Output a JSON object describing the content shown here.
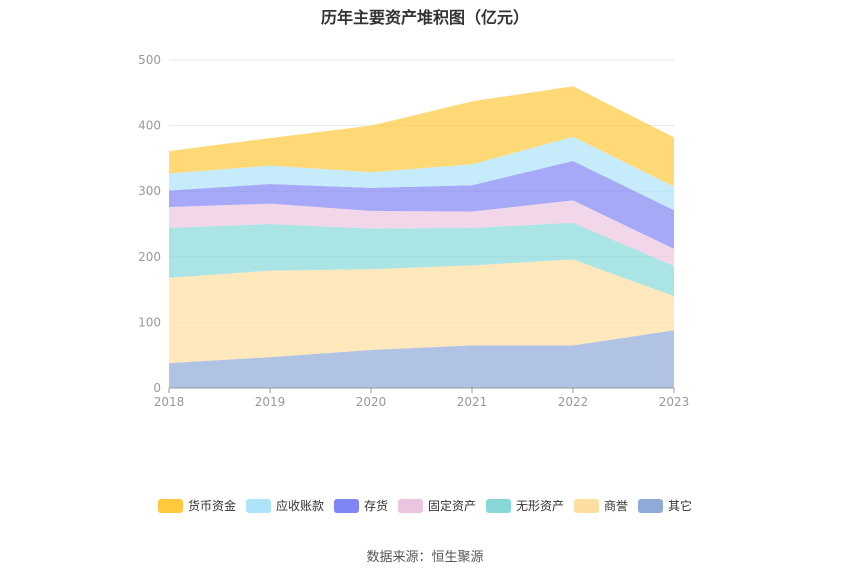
{
  "chart_data": {
    "type": "area",
    "stacked": true,
    "title": "历年主要资产堆积图（亿元）",
    "x": [
      "2018",
      "2019",
      "2020",
      "2021",
      "2022",
      "2023"
    ],
    "ylim": [
      0,
      500
    ],
    "yticks": [
      "0",
      "100",
      "200",
      "300",
      "400",
      "500"
    ],
    "grid": true,
    "legend_position": "bottom",
    "series": [
      {
        "name": "其它",
        "color": "#8eaad9",
        "values": [
          38,
          47,
          58,
          65,
          65,
          88
        ]
      },
      {
        "name": "商誉",
        "color": "#fddea0",
        "values": [
          130,
          132,
          123,
          122,
          131,
          52
        ]
      },
      {
        "name": "无形资产",
        "color": "#88d8d8",
        "values": [
          76,
          71,
          62,
          57,
          56,
          46
        ]
      },
      {
        "name": "固定资产",
        "color": "#ecc4e0",
        "values": [
          32,
          31,
          27,
          25,
          34,
          26
        ]
      },
      {
        "name": "存货",
        "color": "#7f85f4",
        "values": [
          25,
          30,
          35,
          40,
          60,
          59
        ]
      },
      {
        "name": "应收账款",
        "color": "#aee4fa",
        "values": [
          26,
          28,
          24,
          32,
          37,
          36
        ]
      },
      {
        "name": "货币资金",
        "color": "#ffc93c",
        "values": [
          34,
          42,
          71,
          96,
          77,
          75
        ]
      }
    ]
  },
  "source": "数据来源：恒生聚源"
}
